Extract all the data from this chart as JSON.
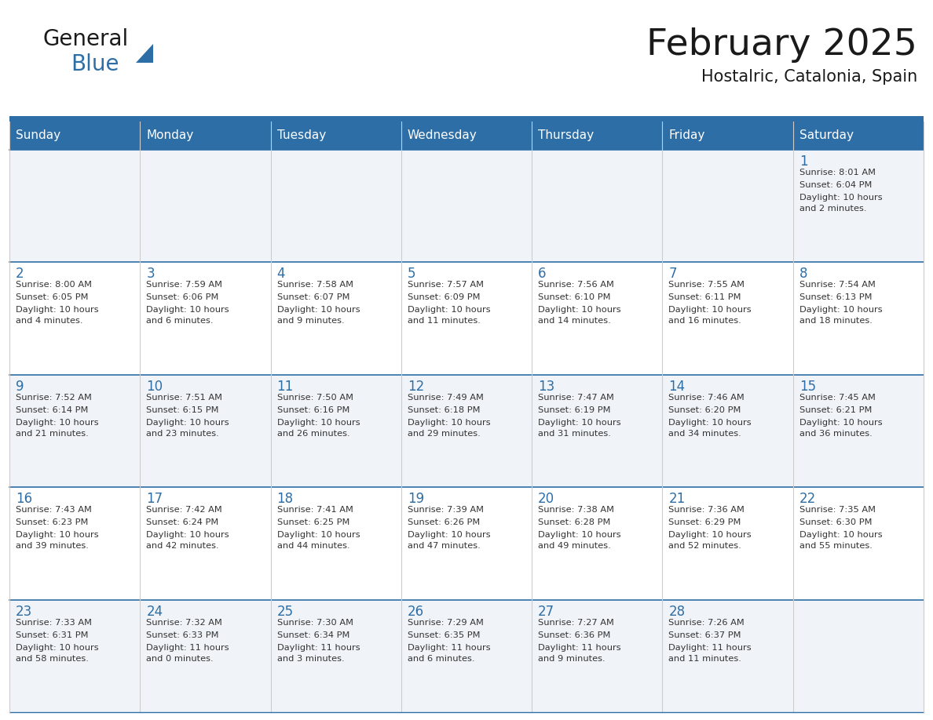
{
  "title": "February 2025",
  "subtitle": "Hostalric, Catalonia, Spain",
  "header_bg": "#2E6EA6",
  "header_text": "#FFFFFF",
  "cell_bg_even": "#F0F4F8",
  "cell_bg_odd": "#FFFFFF",
  "cell_border": "#2E6EA6",
  "day_headers": [
    "Sunday",
    "Monday",
    "Tuesday",
    "Wednesday",
    "Thursday",
    "Friday",
    "Saturday"
  ],
  "title_color": "#1A1A1A",
  "subtitle_color": "#1A1A1A",
  "day_num_color": "#2E6EA6",
  "info_color": "#333333",
  "top_bar_color": "#2E6EA6",
  "logo_general_color": "#1A1A1A",
  "logo_blue_color": "#2E6EA6",
  "calendar": [
    [
      null,
      null,
      null,
      null,
      null,
      null,
      {
        "day": 1,
        "sunrise": "8:01 AM",
        "sunset": "6:04 PM",
        "daylight": "10 hours and 2 minutes."
      }
    ],
    [
      {
        "day": 2,
        "sunrise": "8:00 AM",
        "sunset": "6:05 PM",
        "daylight": "10 hours and 4 minutes."
      },
      {
        "day": 3,
        "sunrise": "7:59 AM",
        "sunset": "6:06 PM",
        "daylight": "10 hours and 6 minutes."
      },
      {
        "day": 4,
        "sunrise": "7:58 AM",
        "sunset": "6:07 PM",
        "daylight": "10 hours and 9 minutes."
      },
      {
        "day": 5,
        "sunrise": "7:57 AM",
        "sunset": "6:09 PM",
        "daylight": "10 hours and 11 minutes."
      },
      {
        "day": 6,
        "sunrise": "7:56 AM",
        "sunset": "6:10 PM",
        "daylight": "10 hours and 14 minutes."
      },
      {
        "day": 7,
        "sunrise": "7:55 AM",
        "sunset": "6:11 PM",
        "daylight": "10 hours and 16 minutes."
      },
      {
        "day": 8,
        "sunrise": "7:54 AM",
        "sunset": "6:13 PM",
        "daylight": "10 hours and 18 minutes."
      }
    ],
    [
      {
        "day": 9,
        "sunrise": "7:52 AM",
        "sunset": "6:14 PM",
        "daylight": "10 hours and 21 minutes."
      },
      {
        "day": 10,
        "sunrise": "7:51 AM",
        "sunset": "6:15 PM",
        "daylight": "10 hours and 23 minutes."
      },
      {
        "day": 11,
        "sunrise": "7:50 AM",
        "sunset": "6:16 PM",
        "daylight": "10 hours and 26 minutes."
      },
      {
        "day": 12,
        "sunrise": "7:49 AM",
        "sunset": "6:18 PM",
        "daylight": "10 hours and 29 minutes."
      },
      {
        "day": 13,
        "sunrise": "7:47 AM",
        "sunset": "6:19 PM",
        "daylight": "10 hours and 31 minutes."
      },
      {
        "day": 14,
        "sunrise": "7:46 AM",
        "sunset": "6:20 PM",
        "daylight": "10 hours and 34 minutes."
      },
      {
        "day": 15,
        "sunrise": "7:45 AM",
        "sunset": "6:21 PM",
        "daylight": "10 hours and 36 minutes."
      }
    ],
    [
      {
        "day": 16,
        "sunrise": "7:43 AM",
        "sunset": "6:23 PM",
        "daylight": "10 hours and 39 minutes."
      },
      {
        "day": 17,
        "sunrise": "7:42 AM",
        "sunset": "6:24 PM",
        "daylight": "10 hours and 42 minutes."
      },
      {
        "day": 18,
        "sunrise": "7:41 AM",
        "sunset": "6:25 PM",
        "daylight": "10 hours and 44 minutes."
      },
      {
        "day": 19,
        "sunrise": "7:39 AM",
        "sunset": "6:26 PM",
        "daylight": "10 hours and 47 minutes."
      },
      {
        "day": 20,
        "sunrise": "7:38 AM",
        "sunset": "6:28 PM",
        "daylight": "10 hours and 49 minutes."
      },
      {
        "day": 21,
        "sunrise": "7:36 AM",
        "sunset": "6:29 PM",
        "daylight": "10 hours and 52 minutes."
      },
      {
        "day": 22,
        "sunrise": "7:35 AM",
        "sunset": "6:30 PM",
        "daylight": "10 hours and 55 minutes."
      }
    ],
    [
      {
        "day": 23,
        "sunrise": "7:33 AM",
        "sunset": "6:31 PM",
        "daylight": "10 hours and 58 minutes."
      },
      {
        "day": 24,
        "sunrise": "7:32 AM",
        "sunset": "6:33 PM",
        "daylight": "11 hours and 0 minutes."
      },
      {
        "day": 25,
        "sunrise": "7:30 AM",
        "sunset": "6:34 PM",
        "daylight": "11 hours and 3 minutes."
      },
      {
        "day": 26,
        "sunrise": "7:29 AM",
        "sunset": "6:35 PM",
        "daylight": "11 hours and 6 minutes."
      },
      {
        "day": 27,
        "sunrise": "7:27 AM",
        "sunset": "6:36 PM",
        "daylight": "11 hours and 9 minutes."
      },
      {
        "day": 28,
        "sunrise": "7:26 AM",
        "sunset": "6:37 PM",
        "daylight": "11 hours and 11 minutes."
      },
      null
    ]
  ]
}
